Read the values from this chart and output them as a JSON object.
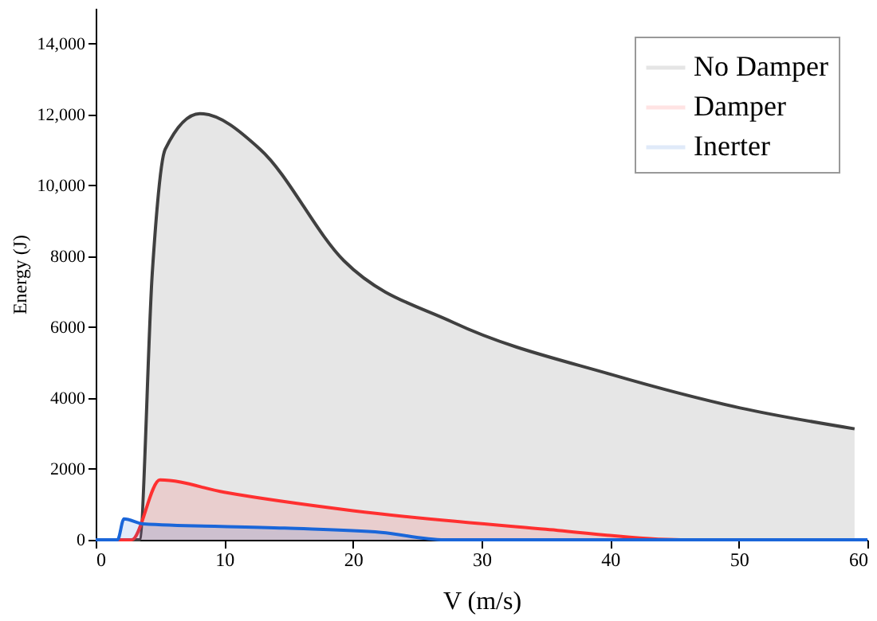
{
  "chart_data": {
    "type": "area",
    "xlabel": "V (m/s)",
    "ylabel": "Energy (J)",
    "xlim": [
      0,
      60
    ],
    "xticks": [
      0,
      10,
      20,
      30,
      40,
      50,
      60
    ],
    "ylim": [
      0,
      15000
    ],
    "yticks": [
      0,
      2000,
      4000,
      6000,
      8000,
      {
        "value": 10000,
        "label": "10,000"
      },
      {
        "value": 12000,
        "label": "12,000"
      },
      {
        "value": 14000,
        "label": "14,000"
      }
    ],
    "grid": false,
    "legend": "top right",
    "line_style": "solid",
    "marker": "none",
    "series": [
      {
        "name": "No Damper",
        "color": "#404040",
        "x": [
          0,
          3.4,
          4.4,
          5.4,
          8.1,
          12.8,
          19.3,
          27.8,
          40.2,
          50.1,
          59
        ],
        "values": [
          0,
          0,
          7520,
          11010,
          12020,
          11010,
          7870,
          6130,
          4650,
          3720,
          3130
        ]
      },
      {
        "name": "Damper",
        "color": "#ff3030",
        "x": [
          0,
          2.8,
          5.0,
          10,
          20,
          35,
          45.5,
          59.4
        ],
        "values": [
          0,
          0,
          1690,
          1340,
          820,
          300,
          0,
          0
        ]
      },
      {
        "name": "Inerter",
        "color": "#1a66d9",
        "x": [
          0,
          1.7,
          2.2,
          3.7,
          14.7,
          22.2,
          27.1,
          60
        ],
        "values": [
          0,
          0,
          590,
          450,
          330,
          210,
          0,
          0
        ]
      }
    ]
  }
}
